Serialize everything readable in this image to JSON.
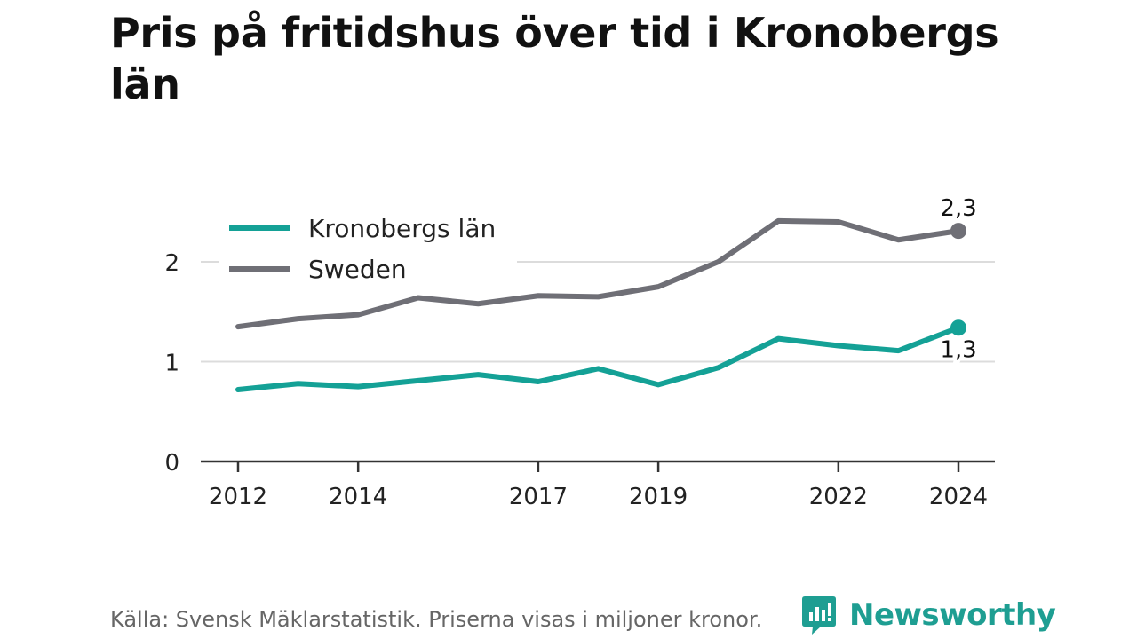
{
  "title": "Pris på fritidshus över tid i Kronobergs län",
  "footer": {
    "source_text": "Källa: Svensk Mäklarstatistik. Priserna visas i miljoner kronor."
  },
  "brand": {
    "name": "Newsworthy",
    "icon": "newsworthy-logo-icon",
    "color": "#1e9e92"
  },
  "chart_data": {
    "type": "line",
    "title": "Pris på fritidshus över tid i Kronobergs län",
    "xlabel": "",
    "ylabel": "",
    "x": [
      2012,
      2013,
      2014,
      2015,
      2016,
      2017,
      2018,
      2019,
      2020,
      2021,
      2022,
      2023,
      2024
    ],
    "x_ticks": [
      "2012",
      "2014",
      "2017",
      "2019",
      "2022",
      "2024"
    ],
    "y_ticks": [
      "0",
      "1",
      "2"
    ],
    "ylim": [
      0,
      2.5
    ],
    "xlim": [
      2012,
      2024
    ],
    "grid": true,
    "legend_position": "top-left",
    "series": [
      {
        "name": "Kronobergs län",
        "color": "#14a196",
        "values": [
          0.72,
          0.78,
          0.75,
          0.81,
          0.87,
          0.8,
          0.93,
          0.77,
          0.94,
          1.23,
          1.16,
          1.11,
          1.34
        ],
        "end_label": "1,3"
      },
      {
        "name": "Sweden",
        "color": "#6f6f76",
        "values": [
          1.35,
          1.43,
          1.47,
          1.64,
          1.58,
          1.66,
          1.65,
          1.75,
          2.0,
          2.41,
          2.4,
          2.22,
          2.31
        ],
        "end_label": "2,3"
      }
    ]
  }
}
